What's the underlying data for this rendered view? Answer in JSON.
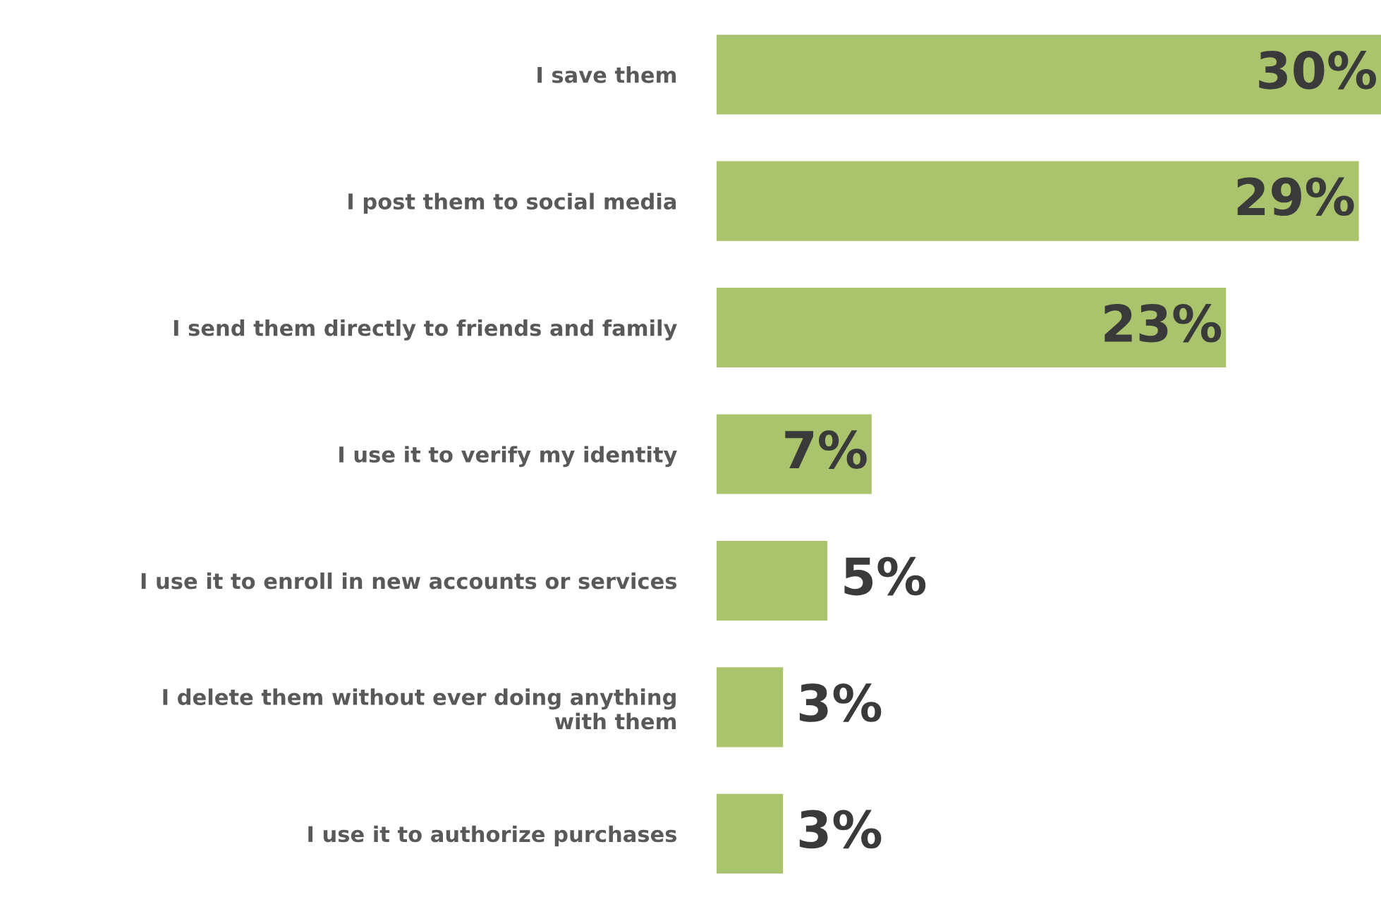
{
  "chart_data": {
    "type": "bar",
    "orientation": "horizontal",
    "categories": [
      "I save them",
      "I post them to social media",
      "I send them directly to friends and family",
      "I use it to verify my identity",
      "I use it to enroll in new accounts or services",
      "I delete them without ever doing anything\nwith them",
      "I use it to authorize purchases"
    ],
    "values": [
      30,
      29,
      23,
      7,
      5,
      3,
      3
    ],
    "value_labels": [
      "30%",
      "29%",
      "23%",
      "7%",
      "5%",
      "3%",
      "3%"
    ],
    "color": "#a9c46c",
    "grid": false,
    "legend": false,
    "tick_labels": "y"
  }
}
